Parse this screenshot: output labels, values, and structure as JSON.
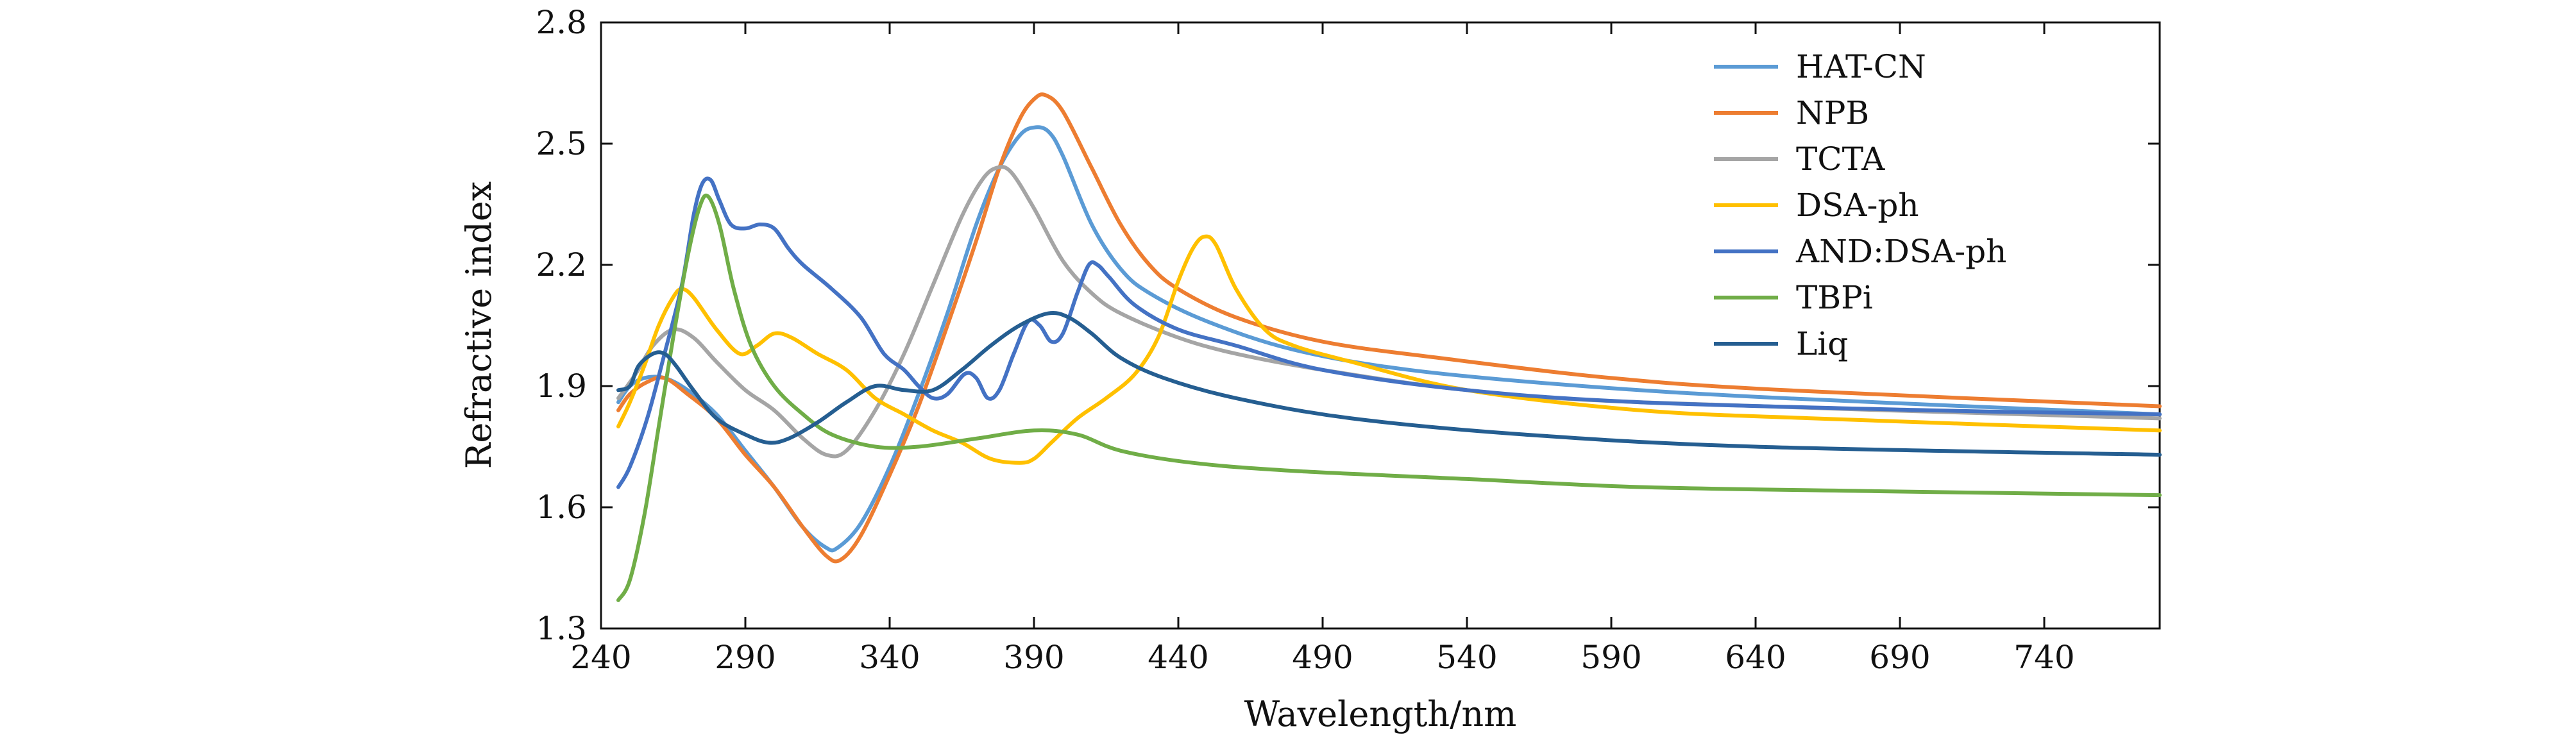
{
  "chart_data": {
    "type": "line",
    "title": "",
    "xlabel": "Wavelength/nm",
    "ylabel": "Refractive index",
    "xlim": [
      240,
      780
    ],
    "ylim": [
      1.3,
      2.8
    ],
    "xticks": [
      240,
      290,
      340,
      390,
      440,
      490,
      540,
      590,
      640,
      690,
      740
    ],
    "yticks": [
      1.3,
      1.6,
      1.9,
      2.2,
      2.5,
      2.8
    ],
    "xtick_labels": [
      "240",
      "290",
      "340",
      "390",
      "440",
      "490",
      "540",
      "590",
      "640",
      "690",
      "740"
    ],
    "ytick_labels": [
      "1.3",
      "1.6",
      "1.9",
      "2.2",
      "2.5",
      "2.8"
    ],
    "grid": false,
    "legend_position": "top-right",
    "series": [
      {
        "name": "HAT-CN",
        "color": "#5b9bd5",
        "points": [
          [
            246,
            1.86
          ],
          [
            250,
            1.9
          ],
          [
            255,
            1.92
          ],
          [
            262,
            1.92
          ],
          [
            270,
            1.89
          ],
          [
            280,
            1.83
          ],
          [
            290,
            1.74
          ],
          [
            300,
            1.65
          ],
          [
            310,
            1.55
          ],
          [
            318,
            1.5
          ],
          [
            322,
            1.5
          ],
          [
            330,
            1.56
          ],
          [
            340,
            1.7
          ],
          [
            350,
            1.88
          ],
          [
            360,
            2.08
          ],
          [
            370,
            2.3
          ],
          [
            378,
            2.44
          ],
          [
            385,
            2.52
          ],
          [
            390,
            2.54
          ],
          [
            395,
            2.53
          ],
          [
            400,
            2.47
          ],
          [
            410,
            2.3
          ],
          [
            420,
            2.19
          ],
          [
            430,
            2.13
          ],
          [
            450,
            2.06
          ],
          [
            480,
            1.99
          ],
          [
            520,
            1.94
          ],
          [
            580,
            1.9
          ],
          [
            650,
            1.87
          ],
          [
            780,
            1.83
          ]
        ]
      },
      {
        "name": "NPB",
        "color": "#ed7d31",
        "points": [
          [
            246,
            1.84
          ],
          [
            250,
            1.88
          ],
          [
            256,
            1.91
          ],
          [
            262,
            1.92
          ],
          [
            270,
            1.88
          ],
          [
            280,
            1.82
          ],
          [
            290,
            1.73
          ],
          [
            300,
            1.65
          ],
          [
            310,
            1.55
          ],
          [
            318,
            1.48
          ],
          [
            323,
            1.47
          ],
          [
            330,
            1.53
          ],
          [
            340,
            1.68
          ],
          [
            350,
            1.85
          ],
          [
            360,
            2.05
          ],
          [
            370,
            2.26
          ],
          [
            378,
            2.44
          ],
          [
            385,
            2.56
          ],
          [
            390,
            2.61
          ],
          [
            394,
            2.62
          ],
          [
            400,
            2.58
          ],
          [
            410,
            2.44
          ],
          [
            420,
            2.3
          ],
          [
            430,
            2.2
          ],
          [
            440,
            2.14
          ],
          [
            460,
            2.07
          ],
          [
            490,
            2.01
          ],
          [
            530,
            1.97
          ],
          [
            590,
            1.92
          ],
          [
            650,
            1.89
          ],
          [
            780,
            1.85
          ]
        ]
      },
      {
        "name": "TCTA",
        "color": "#a5a5a5",
        "points": [
          [
            246,
            1.87
          ],
          [
            252,
            1.93
          ],
          [
            258,
            2.0
          ],
          [
            265,
            2.04
          ],
          [
            272,
            2.02
          ],
          [
            280,
            1.96
          ],
          [
            290,
            1.89
          ],
          [
            300,
            1.84
          ],
          [
            310,
            1.77
          ],
          [
            318,
            1.73
          ],
          [
            325,
            1.74
          ],
          [
            335,
            1.84
          ],
          [
            345,
            1.98
          ],
          [
            355,
            2.15
          ],
          [
            365,
            2.32
          ],
          [
            372,
            2.41
          ],
          [
            377,
            2.44
          ],
          [
            382,
            2.43
          ],
          [
            390,
            2.34
          ],
          [
            400,
            2.21
          ],
          [
            410,
            2.13
          ],
          [
            420,
            2.08
          ],
          [
            440,
            2.02
          ],
          [
            460,
            1.98
          ],
          [
            490,
            1.94
          ],
          [
            540,
            1.89
          ],
          [
            600,
            1.86
          ],
          [
            780,
            1.82
          ]
        ]
      },
      {
        "name": "DSA-ph",
        "color": "#ffc000",
        "points": [
          [
            246,
            1.8
          ],
          [
            250,
            1.86
          ],
          [
            255,
            1.95
          ],
          [
            260,
            2.05
          ],
          [
            265,
            2.12
          ],
          [
            268,
            2.14
          ],
          [
            272,
            2.12
          ],
          [
            280,
            2.04
          ],
          [
            288,
            1.98
          ],
          [
            294,
            2.0
          ],
          [
            300,
            2.03
          ],
          [
            306,
            2.02
          ],
          [
            315,
            1.98
          ],
          [
            325,
            1.94
          ],
          [
            335,
            1.87
          ],
          [
            345,
            1.83
          ],
          [
            355,
            1.79
          ],
          [
            365,
            1.76
          ],
          [
            375,
            1.72
          ],
          [
            385,
            1.71
          ],
          [
            390,
            1.72
          ],
          [
            396,
            1.76
          ],
          [
            405,
            1.82
          ],
          [
            415,
            1.87
          ],
          [
            425,
            1.93
          ],
          [
            433,
            2.02
          ],
          [
            440,
            2.16
          ],
          [
            445,
            2.24
          ],
          [
            449,
            2.27
          ],
          [
            453,
            2.25
          ],
          [
            460,
            2.14
          ],
          [
            470,
            2.04
          ],
          [
            480,
            2.0
          ],
          [
            500,
            1.96
          ],
          [
            540,
            1.89
          ],
          [
            600,
            1.84
          ],
          [
            660,
            1.82
          ],
          [
            780,
            1.79
          ]
        ]
      },
      {
        "name": "AND:DSA-ph",
        "color": "#4472c4",
        "points": [
          [
            246,
            1.65
          ],
          [
            250,
            1.7
          ],
          [
            256,
            1.82
          ],
          [
            262,
            1.98
          ],
          [
            268,
            2.15
          ],
          [
            272,
            2.32
          ],
          [
            275,
            2.4
          ],
          [
            278,
            2.41
          ],
          [
            281,
            2.36
          ],
          [
            285,
            2.3
          ],
          [
            290,
            2.29
          ],
          [
            295,
            2.3
          ],
          [
            300,
            2.29
          ],
          [
            305,
            2.24
          ],
          [
            310,
            2.2
          ],
          [
            320,
            2.14
          ],
          [
            330,
            2.07
          ],
          [
            338,
            1.98
          ],
          [
            345,
            1.94
          ],
          [
            350,
            1.9
          ],
          [
            355,
            1.87
          ],
          [
            360,
            1.88
          ],
          [
            366,
            1.93
          ],
          [
            370,
            1.92
          ],
          [
            374,
            1.87
          ],
          [
            378,
            1.89
          ],
          [
            383,
            1.98
          ],
          [
            388,
            2.06
          ],
          [
            392,
            2.05
          ],
          [
            396,
            2.01
          ],
          [
            400,
            2.03
          ],
          [
            405,
            2.13
          ],
          [
            409,
            2.2
          ],
          [
            412,
            2.2
          ],
          [
            416,
            2.17
          ],
          [
            425,
            2.1
          ],
          [
            440,
            2.04
          ],
          [
            460,
            2.0
          ],
          [
            490,
            1.94
          ],
          [
            540,
            1.89
          ],
          [
            600,
            1.86
          ],
          [
            700,
            1.84
          ],
          [
            780,
            1.83
          ]
        ]
      },
      {
        "name": "TBPi",
        "color": "#70ad47",
        "points": [
          [
            246,
            1.37
          ],
          [
            250,
            1.42
          ],
          [
            255,
            1.58
          ],
          [
            260,
            1.8
          ],
          [
            265,
            2.02
          ],
          [
            270,
            2.22
          ],
          [
            274,
            2.34
          ],
          [
            277,
            2.37
          ],
          [
            281,
            2.3
          ],
          [
            286,
            2.14
          ],
          [
            292,
            2.0
          ],
          [
            300,
            1.9
          ],
          [
            310,
            1.83
          ],
          [
            320,
            1.78
          ],
          [
            335,
            1.75
          ],
          [
            350,
            1.75
          ],
          [
            370,
            1.77
          ],
          [
            390,
            1.79
          ],
          [
            405,
            1.78
          ],
          [
            420,
            1.74
          ],
          [
            445,
            1.71
          ],
          [
            480,
            1.69
          ],
          [
            540,
            1.67
          ],
          [
            600,
            1.65
          ],
          [
            680,
            1.64
          ],
          [
            780,
            1.63
          ]
        ]
      },
      {
        "name": "Liq",
        "color": "#255e91",
        "points": [
          [
            246,
            1.89
          ],
          [
            250,
            1.9
          ],
          [
            253,
            1.95
          ],
          [
            258,
            1.98
          ],
          [
            262,
            1.98
          ],
          [
            266,
            1.95
          ],
          [
            272,
            1.89
          ],
          [
            280,
            1.82
          ],
          [
            290,
            1.78
          ],
          [
            298,
            1.76
          ],
          [
            305,
            1.77
          ],
          [
            315,
            1.81
          ],
          [
            325,
            1.86
          ],
          [
            335,
            1.9
          ],
          [
            345,
            1.89
          ],
          [
            355,
            1.89
          ],
          [
            365,
            1.94
          ],
          [
            375,
            2.0
          ],
          [
            385,
            2.05
          ],
          [
            395,
            2.08
          ],
          [
            402,
            2.07
          ],
          [
            410,
            2.03
          ],
          [
            420,
            1.97
          ],
          [
            435,
            1.92
          ],
          [
            460,
            1.87
          ],
          [
            500,
            1.82
          ],
          [
            560,
            1.78
          ],
          [
            640,
            1.75
          ],
          [
            780,
            1.73
          ]
        ]
      }
    ]
  }
}
